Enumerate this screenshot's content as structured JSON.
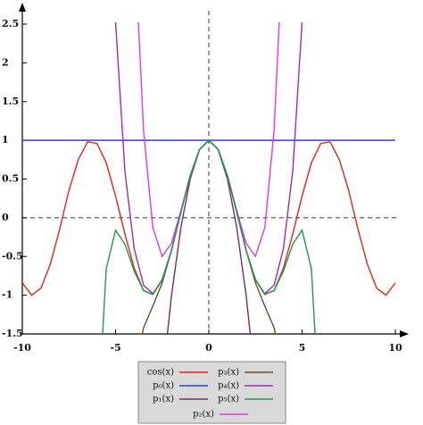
{
  "chart_data": {
    "type": "line",
    "x": [
      -10,
      -9.5,
      -9,
      -8.5,
      -8,
      -7.5,
      -7,
      -6.5,
      -6,
      -5.5,
      -5,
      -4.5,
      -4,
      -3.5,
      -3,
      -2.5,
      -2,
      -1.5,
      -1,
      -0.5,
      0,
      0.5,
      1,
      1.5,
      2,
      2.5,
      3,
      3.5,
      4,
      4.5,
      5,
      5.5,
      6,
      6.5,
      7,
      7.5,
      8,
      8.5,
      9,
      9.5,
      10
    ],
    "series": [
      {
        "name": "cos(x)",
        "color": "#e3241b",
        "values": [
          -0.84,
          -1,
          -0.91,
          -0.6,
          -0.15,
          0.35,
          0.75,
          0.98,
          0.96,
          0.71,
          0.28,
          -0.21,
          -0.65,
          -0.94,
          -0.99,
          -0.8,
          -0.42,
          0.07,
          0.54,
          0.88,
          1,
          0.88,
          0.54,
          0.07,
          -0.42,
          -0.8,
          -0.99,
          -0.94,
          -0.65,
          -0.21,
          0.28,
          0.71,
          0.96,
          0.98,
          0.75,
          0.35,
          -0.15,
          -0.6,
          -0.91,
          -1,
          -0.84
        ]
      },
      {
        "name": "p₀(x)",
        "color": "#3a3ad6",
        "values": [
          1,
          1,
          1,
          1,
          1,
          1,
          1,
          1,
          1,
          1,
          1,
          1,
          1,
          1,
          1,
          1,
          1,
          1,
          1,
          1,
          1,
          1,
          1,
          1,
          1,
          1,
          1,
          1,
          1,
          1,
          1,
          1,
          1,
          1,
          1,
          1,
          1,
          1,
          1,
          1,
          1
        ]
      },
      {
        "name": "p₁(x)",
        "color": "#7a2a6e",
        "values": [
          null,
          null,
          null,
          null,
          null,
          null,
          null,
          null,
          null,
          null,
          null,
          null,
          null,
          null,
          null,
          -2.13,
          -1,
          -0.13,
          0.5,
          0.88,
          1,
          0.88,
          0.5,
          -0.13,
          -1,
          -2.13,
          null,
          null,
          null,
          null,
          null,
          null,
          null,
          null,
          null,
          null,
          null,
          null,
          null,
          null,
          null
        ]
      },
      {
        "name": "p₂(x)",
        "color": "#e637e6",
        "values": [
          null,
          null,
          null,
          null,
          null,
          null,
          null,
          null,
          null,
          null,
          null,
          null,
          3.67,
          1.13,
          -0.13,
          -0.5,
          -0.33,
          0.09,
          0.54,
          0.88,
          1,
          0.88,
          0.54,
          0.09,
          -0.33,
          -0.5,
          -0.13,
          1.13,
          3.67,
          null,
          null,
          null,
          null,
          null,
          null,
          null,
          null,
          null,
          null,
          null,
          null
        ]
      },
      {
        "name": "p₃(x)",
        "color": "#6e4b2e",
        "values": [
          null,
          null,
          null,
          null,
          null,
          null,
          null,
          null,
          null,
          null,
          null,
          null,
          -2.02,
          -1.42,
          -1.14,
          -0.84,
          -0.42,
          0.07,
          0.54,
          0.88,
          1,
          0.88,
          0.54,
          0.07,
          -0.42,
          -0.84,
          -1.14,
          -1.42,
          -2.02,
          null,
          null,
          null,
          null,
          null,
          null,
          null,
          null,
          null,
          null,
          null,
          null
        ]
      },
      {
        "name": "p₄(x)",
        "color": "#9a2fa8",
        "values": [
          null,
          null,
          null,
          null,
          null,
          null,
          null,
          null,
          null,
          6.33,
          2.53,
          0.6,
          -0.4,
          -0.87,
          -0.98,
          -0.8,
          -0.42,
          0.07,
          0.54,
          0.88,
          1,
          0.88,
          0.54,
          0.07,
          -0.42,
          -0.8,
          -0.98,
          -0.87,
          -0.4,
          0.6,
          2.53,
          6.33,
          null,
          null,
          null,
          null,
          null,
          null,
          null,
          null,
          null
        ]
      },
      {
        "name": "p₅(x)",
        "color": "#1f9a50",
        "values": [
          null,
          null,
          null,
          null,
          null,
          null,
          null,
          null,
          -2.81,
          -0.66,
          -0.16,
          -0.34,
          -0.69,
          -0.94,
          -0.99,
          -0.8,
          -0.42,
          0.07,
          0.54,
          0.88,
          1,
          0.88,
          0.54,
          0.07,
          -0.42,
          -0.8,
          -0.99,
          -0.94,
          -0.69,
          -0.34,
          -0.16,
          -0.66,
          -2.81,
          null,
          null,
          null,
          null,
          null,
          null,
          null,
          null
        ]
      }
    ],
    "xlim": [
      -10,
      10
    ],
    "ylim": [
      -1.5,
      2.5
    ],
    "xticks": [
      -10,
      -5,
      0,
      5,
      10
    ],
    "yticks": [
      -1.5,
      -1,
      -0.5,
      0,
      0.5,
      1,
      1.5,
      2,
      2.5
    ],
    "grid": false
  }
}
